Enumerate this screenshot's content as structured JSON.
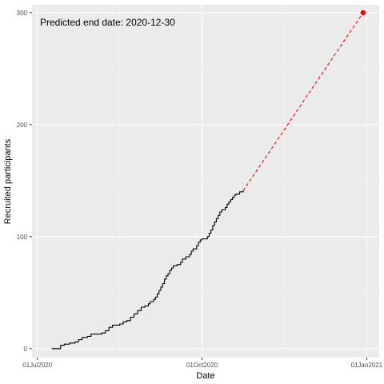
{
  "chart_data": {
    "type": "line",
    "title": "",
    "xlabel": "Date",
    "ylabel": "Recruited participants",
    "x_axis": {
      "type": "date",
      "range": [
        "2020-06-28",
        "2021-01-08"
      ],
      "ticks": [
        {
          "value": "2020-07-01",
          "label": "01Jul2020"
        },
        {
          "value": "2020-10-01",
          "label": "01Oct2020"
        },
        {
          "value": "2021-01-01",
          "label": "01Jan2021"
        }
      ]
    },
    "y_axis": {
      "range": [
        -8,
        307
      ],
      "ticks": [
        0,
        100,
        200,
        300
      ],
      "minor_ticks": [
        50,
        150,
        250
      ]
    },
    "grid": true,
    "annotation": "Predicted end date: 2020-12-30",
    "series": [
      {
        "style": "step",
        "color": "#000000",
        "points": [
          [
            "2020-07-09",
            0
          ],
          [
            "2020-07-14",
            1
          ],
          [
            "2020-07-14",
            3
          ],
          [
            "2020-07-16",
            4
          ],
          [
            "2020-07-19",
            5
          ],
          [
            "2020-07-22",
            6
          ],
          [
            "2020-07-24",
            8
          ],
          [
            "2020-07-26",
            10
          ],
          [
            "2020-07-29",
            11
          ],
          [
            "2020-07-31",
            13
          ],
          [
            "2020-08-06",
            14
          ],
          [
            "2020-08-08",
            16
          ],
          [
            "2020-08-10",
            19
          ],
          [
            "2020-08-12",
            21
          ],
          [
            "2020-08-16",
            22
          ],
          [
            "2020-08-18",
            24
          ],
          [
            "2020-08-20",
            25
          ],
          [
            "2020-08-22",
            28
          ],
          [
            "2020-08-24",
            31
          ],
          [
            "2020-08-26",
            34
          ],
          [
            "2020-08-28",
            37
          ],
          [
            "2020-08-30",
            38
          ],
          [
            "2020-09-01",
            40
          ],
          [
            "2020-09-02",
            42
          ],
          [
            "2020-09-04",
            44
          ],
          [
            "2020-09-05",
            46
          ],
          [
            "2020-09-06",
            49
          ],
          [
            "2020-09-07",
            52
          ],
          [
            "2020-09-08",
            55
          ],
          [
            "2020-09-09",
            58
          ],
          [
            "2020-09-10",
            62
          ],
          [
            "2020-09-11",
            65
          ],
          [
            "2020-09-12",
            67
          ],
          [
            "2020-09-13",
            70
          ],
          [
            "2020-09-14",
            72
          ],
          [
            "2020-09-15",
            74
          ],
          [
            "2020-09-17",
            75
          ],
          [
            "2020-09-19",
            77
          ],
          [
            "2020-09-20",
            80
          ],
          [
            "2020-09-22",
            82
          ],
          [
            "2020-09-24",
            84
          ],
          [
            "2020-09-25",
            87
          ],
          [
            "2020-09-26",
            89
          ],
          [
            "2020-09-28",
            92
          ],
          [
            "2020-09-29",
            95
          ],
          [
            "2020-09-30",
            97
          ],
          [
            "2020-10-01",
            98
          ],
          [
            "2020-10-04",
            100
          ],
          [
            "2020-10-05",
            103
          ],
          [
            "2020-10-06",
            106
          ],
          [
            "2020-10-07",
            110
          ],
          [
            "2020-10-08",
            113
          ],
          [
            "2020-10-09",
            116
          ],
          [
            "2020-10-10",
            119
          ],
          [
            "2020-10-11",
            122
          ],
          [
            "2020-10-12",
            124
          ],
          [
            "2020-10-14",
            126
          ],
          [
            "2020-10-15",
            129
          ],
          [
            "2020-10-16",
            131
          ],
          [
            "2020-10-17",
            133
          ],
          [
            "2020-10-18",
            135
          ],
          [
            "2020-10-19",
            137
          ],
          [
            "2020-10-20",
            138
          ],
          [
            "2020-10-22",
            140
          ],
          [
            "2020-10-24",
            141
          ]
        ]
      },
      {
        "style": "dashed",
        "color": "#ff0000",
        "points": [
          [
            "2020-10-24",
            141
          ],
          [
            "2020-12-30",
            300
          ]
        ]
      }
    ],
    "predicted_point": {
      "x": "2020-12-30",
      "y": 300,
      "color": "#ff0000"
    }
  }
}
